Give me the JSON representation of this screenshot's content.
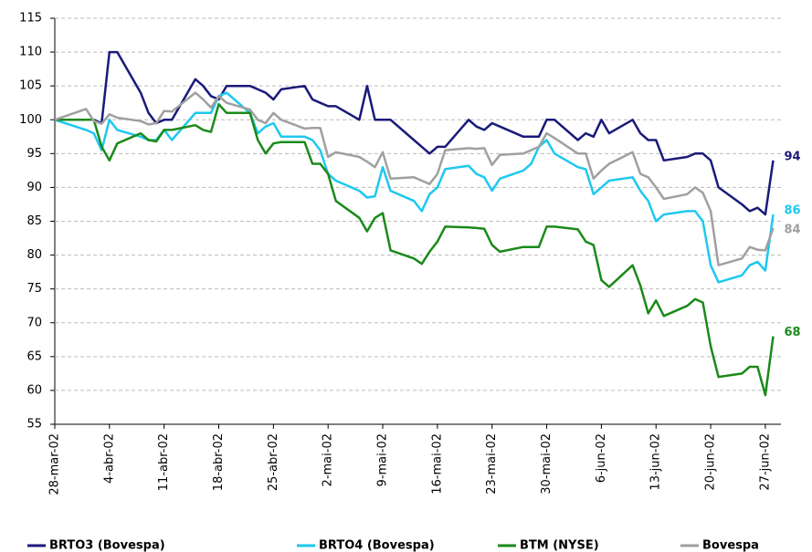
{
  "chart_data": {
    "type": "line",
    "x": [
      "2002-03-28",
      "2002-04-01",
      "2002-04-02",
      "2002-04-03",
      "2002-04-04",
      "2002-04-05",
      "2002-04-08",
      "2002-04-09",
      "2002-04-10",
      "2002-04-11",
      "2002-04-12",
      "2002-04-15",
      "2002-04-16",
      "2002-04-17",
      "2002-04-18",
      "2002-04-19",
      "2002-04-22",
      "2002-04-23",
      "2002-04-24",
      "2002-04-25",
      "2002-04-26",
      "2002-04-29",
      "2002-04-30",
      "2002-05-01",
      "2002-05-02",
      "2002-05-03",
      "2002-05-06",
      "2002-05-07",
      "2002-05-08",
      "2002-05-09",
      "2002-05-10",
      "2002-05-13",
      "2002-05-14",
      "2002-05-15",
      "2002-05-16",
      "2002-05-17",
      "2002-05-20",
      "2002-05-21",
      "2002-05-22",
      "2002-05-23",
      "2002-05-24",
      "2002-05-27",
      "2002-05-28",
      "2002-05-29",
      "2002-05-30",
      "2002-05-31",
      "2002-06-03",
      "2002-06-04",
      "2002-06-05",
      "2002-06-06",
      "2002-06-07",
      "2002-06-10",
      "2002-06-11",
      "2002-06-12",
      "2002-06-13",
      "2002-06-14",
      "2002-06-17",
      "2002-06-18",
      "2002-06-19",
      "2002-06-20",
      "2002-06-21",
      "2002-06-24",
      "2002-06-25",
      "2002-06-26",
      "2002-06-27",
      "2002-06-28"
    ],
    "series": [
      {
        "name": "BRTO3 (Bovespa)",
        "color": "#1a1a7a",
        "values": [
          100,
          100,
          100,
          99.5,
          110,
          110,
          104,
          101,
          99.5,
          100,
          100,
          106,
          105,
          103.5,
          103,
          105,
          105,
          104.5,
          104,
          103,
          104.5,
          105,
          103,
          102.5,
          102,
          102,
          100,
          105,
          100,
          100,
          100,
          97,
          96,
          95,
          96,
          96,
          100,
          99,
          98.5,
          99.5,
          99,
          97.5,
          97.5,
          97.5,
          100,
          100,
          97,
          98,
          97.5,
          100,
          98,
          100,
          98,
          97,
          97,
          94,
          94.5,
          95,
          95,
          94,
          90,
          87.5,
          86.5,
          87,
          86,
          94
        ]
      },
      {
        "name": "BRTO4 (Bovespa)",
        "color": "#1ec8f0",
        "values": [
          100,
          98.5,
          98,
          95.5,
          100,
          98.5,
          97.5,
          97,
          97,
          98.5,
          97,
          101,
          101,
          101,
          103.5,
          104,
          101,
          98,
          99,
          99.5,
          97.5,
          97.5,
          97,
          95.5,
          92,
          91,
          89.5,
          88.5,
          88.7,
          93,
          89.5,
          88,
          86.5,
          89,
          90,
          92.7,
          93.2,
          92,
          91.5,
          89.5,
          91.3,
          92.5,
          93.5,
          96,
          97,
          95,
          93,
          92.7,
          89,
          90,
          91,
          91.5,
          89.5,
          88,
          85,
          86,
          86.5,
          86.5,
          85,
          78.5,
          76,
          77,
          78.5,
          79,
          77.7,
          86
        ]
      },
      {
        "name": "BTM (NYSE)",
        "color": "#1a8a1a",
        "values": [
          100,
          100,
          100,
          96,
          94,
          96.5,
          98,
          97,
          96.8,
          98.5,
          98.5,
          99.2,
          98.5,
          98.2,
          102.3,
          101,
          101,
          97,
          95,
          96.5,
          96.7,
          96.7,
          93.5,
          93.5,
          92,
          88,
          85.5,
          83.5,
          85.5,
          86.2,
          80.7,
          79.5,
          78.7,
          80.5,
          82,
          84.2,
          84.1,
          84,
          83.9,
          81.5,
          80.5,
          81.2,
          81.2,
          81.2,
          84.2,
          84.2,
          83.8,
          82,
          81.5,
          76.3,
          75.3,
          78.5,
          75.5,
          71.4,
          73.3,
          71,
          72.5,
          73.5,
          73,
          66.5,
          62,
          62.5,
          63.5,
          63.5,
          59.3,
          68
        ]
      },
      {
        "name": "Bovespa",
        "color": "#a0a0a0",
        "values": [
          100,
          101.6,
          99.8,
          99.4,
          100.8,
          100.3,
          99.8,
          99.3,
          99.5,
          101.3,
          101.2,
          104,
          103,
          101.8,
          103.5,
          102.5,
          101.5,
          100,
          99.5,
          101,
          100,
          98.7,
          98.8,
          98.8,
          94.5,
          95.2,
          94.5,
          93.8,
          93,
          95.2,
          91.3,
          91.5,
          91,
          90.5,
          92,
          95.5,
          95.8,
          95.7,
          95.8,
          93.3,
          94.8,
          95,
          95.5,
          96,
          98,
          97.3,
          95,
          95,
          91.3,
          92.5,
          93.5,
          95.2,
          92,
          91.5,
          90,
          88.3,
          89,
          90,
          89.2,
          86.5,
          78.5,
          79.5,
          81.2,
          80.8,
          80.7,
          84
        ]
      }
    ],
    "xlim": [
      "2002-03-28",
      "2002-06-29"
    ],
    "xticks": [
      {
        "value": "2002-03-28",
        "label": "28-mar-02"
      },
      {
        "value": "2002-04-04",
        "label": "4-abr-02"
      },
      {
        "value": "2002-04-11",
        "label": "11-abr-02"
      },
      {
        "value": "2002-04-18",
        "label": "18-abr-02"
      },
      {
        "value": "2002-04-25",
        "label": "25-abr-02"
      },
      {
        "value": "2002-05-02",
        "label": "2-mai-02"
      },
      {
        "value": "2002-05-09",
        "label": "9-mai-02"
      },
      {
        "value": "2002-05-16",
        "label": "16-mai-02"
      },
      {
        "value": "2002-05-23",
        "label": "23-mai-02"
      },
      {
        "value": "2002-05-30",
        "label": "30-mai-02"
      },
      {
        "value": "2002-06-06",
        "label": "6-jun-02"
      },
      {
        "value": "2002-06-13",
        "label": "13-jun-02"
      },
      {
        "value": "2002-06-20",
        "label": "20-jun-02"
      },
      {
        "value": "2002-06-27",
        "label": "27-jun-02"
      }
    ],
    "ylim": [
      55,
      115
    ],
    "yticks": [
      55,
      60,
      65,
      70,
      75,
      80,
      85,
      90,
      95,
      100,
      105,
      110,
      115
    ],
    "grid": true
  }
}
